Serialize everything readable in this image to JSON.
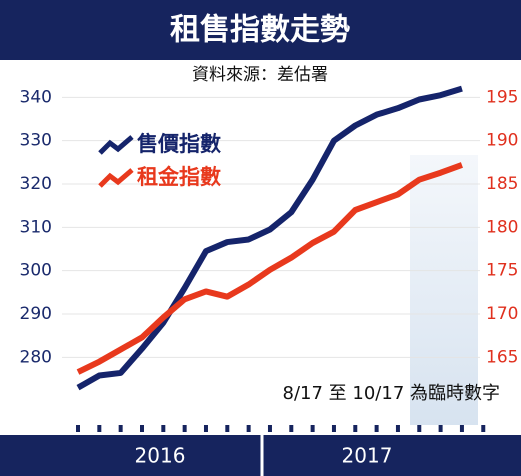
{
  "chart_data": {
    "type": "line",
    "title": "租售指數走勢",
    "subtitle": "資料來源：差估署",
    "annotation": "8/17 至 10/17 為臨時數字",
    "year_labels": [
      "2016",
      "2017"
    ],
    "series": [
      {
        "name": "售價指數",
        "color": "#15246b",
        "values": [
          273,
          275.8,
          276.4,
          282,
          288,
          296,
          304.5,
          306.6,
          307.2,
          309.5,
          313.5,
          321,
          330,
          333.5,
          336,
          337.5,
          339.5,
          340.5,
          342
        ]
      },
      {
        "name": "租金指數",
        "color": "#e8391d",
        "axis": "y2",
        "values": [
          163.3,
          164.5,
          165.9,
          167.3,
          169.6,
          171.7,
          172.6,
          172,
          173.4,
          175.1,
          176.5,
          178.2,
          179.5,
          182,
          182.9,
          183.8,
          185.5,
          186.3,
          187.2
        ]
      }
    ],
    "ylim": [
      272,
      344
    ],
    "yticks": [
      280,
      290,
      300,
      310,
      320,
      330,
      340
    ],
    "y2lim": [
      161,
      197
    ],
    "y2ticks": [
      165,
      170,
      175,
      180,
      185,
      190,
      195
    ],
    "grid": true
  }
}
